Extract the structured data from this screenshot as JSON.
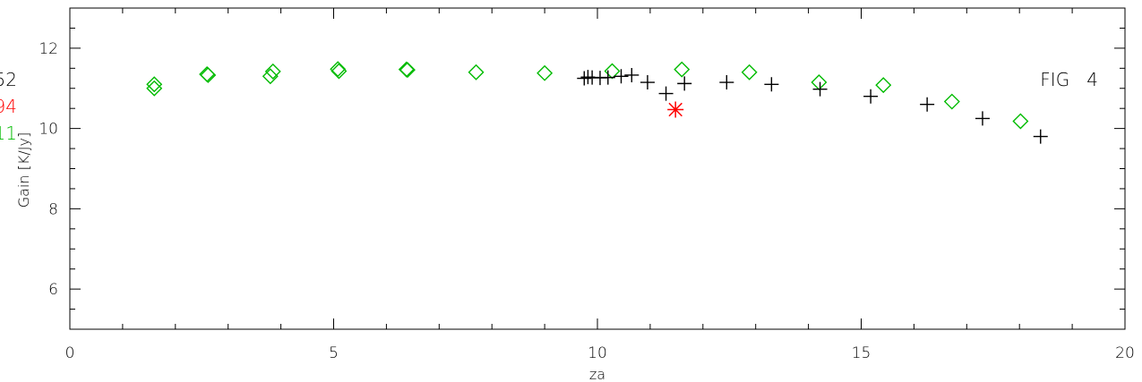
{
  "chart_data": {
    "type": "scatter",
    "title": "",
    "xlabel": "za",
    "ylabel": "Gain [K/Jy]",
    "xlim": [
      0,
      20
    ],
    "ylim": [
      5,
      13
    ],
    "grid": false,
    "x_ticks": [
      0,
      5,
      10,
      15,
      20
    ],
    "x_tick_labels": [
      "0",
      "5",
      "10",
      "15",
      "20"
    ],
    "y_ticks": [
      6,
      8,
      10,
      12
    ],
    "y_tick_labels": [
      "6",
      "8",
      "10",
      "12"
    ],
    "annotation": "FIG   4",
    "left_edge_labels": [
      {
        "text": "52",
        "color": "#000000"
      },
      {
        "text": "94",
        "color": "#ff0000"
      },
      {
        "text": "11",
        "color": "#00bb00"
      }
    ],
    "series": [
      {
        "marker": "diamond",
        "color": "#00bb00",
        "x": [
          1.6,
          1.6,
          2.6,
          2.62,
          3.8,
          3.85,
          5.08,
          5.1,
          6.38,
          6.4,
          7.7,
          9.0,
          10.28,
          11.6,
          12.88,
          14.2,
          15.42,
          16.72,
          18.02
        ],
        "y": [
          11.1,
          11.0,
          11.35,
          11.33,
          11.3,
          11.42,
          11.48,
          11.43,
          11.47,
          11.46,
          11.4,
          11.38,
          11.43,
          11.47,
          11.4,
          11.15,
          11.08,
          10.67,
          10.18
        ]
      },
      {
        "marker": "plus",
        "color": "#000000",
        "x": [
          9.75,
          9.82,
          9.9,
          10.05,
          10.2,
          10.45,
          10.65,
          10.95,
          11.3,
          11.65,
          12.45,
          13.3,
          14.22,
          15.18,
          16.25,
          17.3,
          18.4
        ],
        "y": [
          11.25,
          11.28,
          11.27,
          11.26,
          11.27,
          11.3,
          11.33,
          11.15,
          10.87,
          11.12,
          11.15,
          11.1,
          10.98,
          10.8,
          10.6,
          10.25,
          9.8
        ]
      },
      {
        "marker": "asterisk",
        "color": "#ff0000",
        "x": [
          11.48
        ],
        "y": [
          10.47
        ]
      }
    ]
  }
}
